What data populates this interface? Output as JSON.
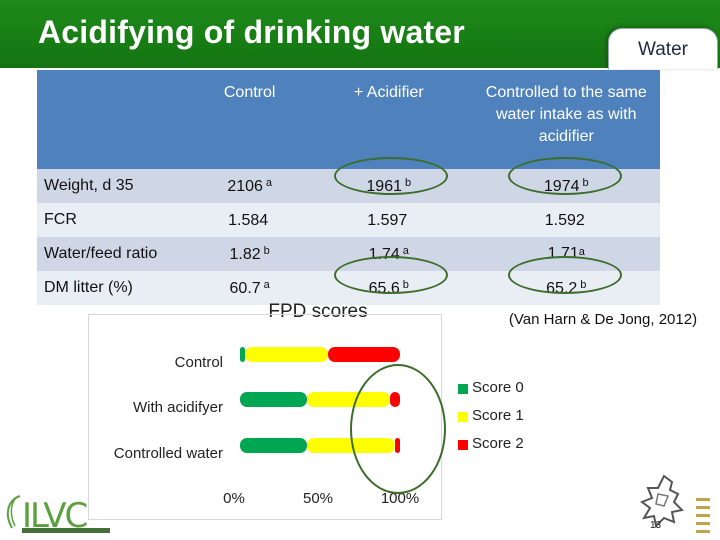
{
  "slide": {
    "title": "Acidifying of drinking water",
    "tag": "Water",
    "page_number": "13",
    "reference": "(Van Harn & De Jong, 2012)",
    "logo_text": "ILVC"
  },
  "table": {
    "headers": [
      "",
      "Control",
      "+ Acidifier",
      "Controlled to the same  water intake as with acidifier"
    ],
    "rows": [
      {
        "label": "Weight, d  35",
        "cells": [
          {
            "v": "2106",
            "s": "a"
          },
          {
            "v": "1961",
            "s": "b"
          },
          {
            "v": "1974",
            "s": "b"
          }
        ]
      },
      {
        "label": "FCR",
        "cells": [
          {
            "v": "1.584",
            "s": ""
          },
          {
            "v": "1.597",
            "s": ""
          },
          {
            "v": "1.592",
            "s": ""
          }
        ]
      },
      {
        "label": "Water/feed ratio",
        "cells": [
          {
            "v": "1.82",
            "s": "b"
          },
          {
            "v": "1.74",
            "s": "a"
          },
          {
            "v": "1.71",
            "s": "a"
          }
        ]
      },
      {
        "label": "DM litter (%)",
        "cells": [
          {
            "v": "60.7",
            "s": "a"
          },
          {
            "v": "65.6",
            "s": "b"
          },
          {
            "v": "65.2",
            "s": "b"
          }
        ]
      }
    ]
  },
  "chart_data": {
    "type": "bar",
    "orientation": "horizontal",
    "stacked": true,
    "title": "FPD scores",
    "categories": [
      "Control",
      "With acidifyer",
      "Controlled water"
    ],
    "series": [
      {
        "name": "Score 0",
        "color": "#00a651",
        "values": [
          3,
          42,
          42
        ]
      },
      {
        "name": "Score 1",
        "color": "#ffff00",
        "values": [
          52,
          52,
          55
        ]
      },
      {
        "name": "Score 2",
        "color": "#ff0000",
        "values": [
          45,
          6,
          3
        ]
      }
    ],
    "xticks": [
      "0%",
      "50%",
      "100%"
    ],
    "xlim": [
      0,
      100
    ],
    "legend_position": "right"
  }
}
